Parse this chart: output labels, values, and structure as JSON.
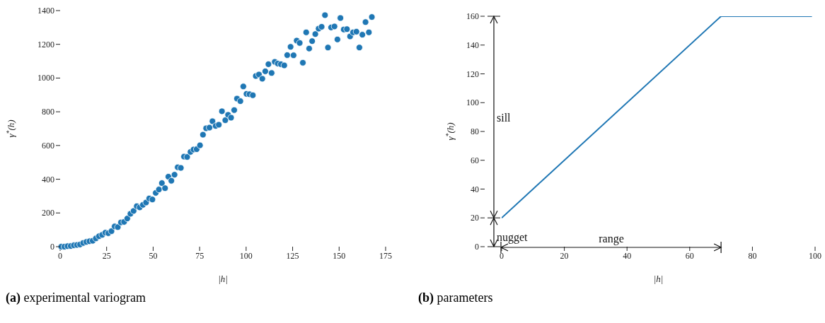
{
  "chart_data": [
    {
      "type": "scatter",
      "title": "(a) experimental variogram",
      "xlabel": "|h|",
      "ylabel": "γ$^{*}$(h)",
      "marker": "circle",
      "color": "#1f77b4",
      "x": [
        0.6,
        2.3,
        4.0,
        5.7,
        7.4,
        9.1,
        10.7,
        12.4,
        14.1,
        15.8,
        17.5,
        19.2,
        20.9,
        22.6,
        24.3,
        25.9,
        27.6,
        29.3,
        31.0,
        32.7,
        34.4,
        36.1,
        37.8,
        39.5,
        41.2,
        42.8,
        44.5,
        46.2,
        47.9,
        49.6,
        51.4,
        53.1,
        54.7,
        56.4,
        58.2,
        59.8,
        61.5,
        63.2,
        64.9,
        66.6,
        68.3,
        70.1,
        71.7,
        73.4,
        75.2,
        76.8,
        78.5,
        80.3,
        81.9,
        83.6,
        85.3,
        87.0,
        88.8,
        90.3,
        91.9,
        93.6,
        95.1,
        96.9,
        98.5,
        100.2,
        101.8,
        103.6,
        105.2,
        106.9,
        108.7,
        110.3,
        112.0,
        113.7,
        115.4,
        117.0,
        118.7,
        120.5,
        122.1,
        123.9,
        125.5,
        127.2,
        128.8,
        130.5,
        132.3,
        133.9,
        135.5,
        137.2,
        139.0,
        140.6,
        142.4,
        144.0,
        145.7,
        147.5,
        149.1,
        150.7,
        152.5,
        154.2,
        155.9,
        157.5,
        159.3,
        160.9,
        162.5,
        164.2,
        166.0,
        167.6
      ],
      "values": [
        0,
        0,
        3,
        4,
        8,
        10,
        13,
        22,
        28,
        32,
        35,
        49,
        62,
        70,
        83,
        80,
        92,
        120,
        116,
        144,
        147,
        167,
        195,
        212,
        240,
        233,
        248,
        262,
        286,
        280,
        319,
        339,
        377,
        347,
        415,
        391,
        427,
        471,
        467,
        534,
        532,
        562,
        576,
        578,
        601,
        664,
        702,
        706,
        744,
        716,
        723,
        803,
        750,
        782,
        765,
        810,
        878,
        863,
        950,
        906,
        904,
        898,
        1012,
        1021,
        996,
        1040,
        1082,
        1030,
        1096,
        1086,
        1082,
        1075,
        1136,
        1185,
        1135,
        1222,
        1208,
        1091,
        1271,
        1175,
        1219,
        1261,
        1293,
        1304,
        1373,
        1181,
        1300,
        1306,
        1229,
        1356,
        1288,
        1290,
        1247,
        1271,
        1275,
        1181,
        1257,
        1332,
        1271,
        1362
      ],
      "xlim": [
        0,
        175
      ],
      "ylim": [
        0,
        1400
      ],
      "xticks": [
        0,
        25,
        50,
        75,
        100,
        125,
        150,
        175
      ],
      "yticks": [
        0,
        200,
        400,
        600,
        800,
        1000,
        1200,
        1400
      ]
    },
    {
      "type": "line",
      "title": "(b) parameters",
      "xlabel": "|h|",
      "ylabel": "γ$^{*}$(h)",
      "color": "#1f77b4",
      "x": [
        0,
        70,
        99
      ],
      "values": [
        20,
        160,
        160
      ],
      "xlim": [
        0,
        100
      ],
      "ylim": [
        0,
        160
      ],
      "xticks": [
        0,
        20,
        40,
        60,
        80,
        100
      ],
      "yticks": [
        0,
        20,
        40,
        60,
        80,
        100,
        120,
        140,
        160
      ],
      "annotations": [
        "sill",
        "nugget",
        "range"
      ]
    }
  ]
}
